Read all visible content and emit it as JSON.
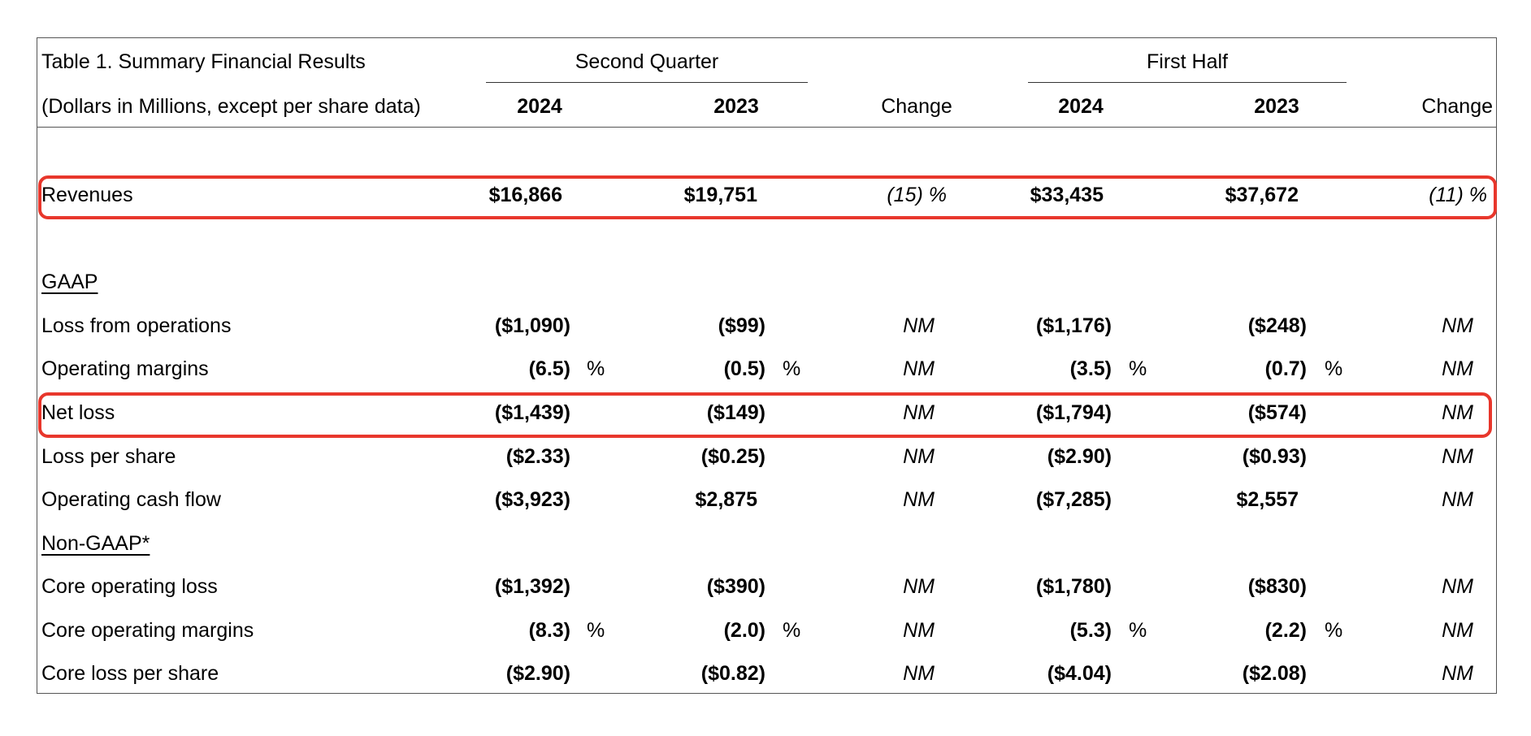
{
  "table": {
    "title": "Table 1. Summary Financial Results",
    "subtitle": "(Dollars in Millions, except per share data)",
    "groups": {
      "q2": "Second Quarter",
      "h1": "First Half"
    },
    "columns": {
      "q2_2024": "2024",
      "q2_2023": "2023",
      "q2_change": "Change",
      "h1_2024": "2024",
      "h1_2023": "2023",
      "h1_change": "Change"
    },
    "percent_sign": "%",
    "rows": [
      {
        "label": "Revenues",
        "q2_2024": "$16,866",
        "q2_2023": "$19,751",
        "q2_change": "(15) %",
        "h1_2024": "$33,435",
        "h1_2023": "$37,672",
        "h1_change": "(11) %",
        "highlighted": true
      },
      {
        "label": "GAAP",
        "section": true
      },
      {
        "label": "Loss from operations",
        "q2_2024": "($1,090)",
        "q2_2023": "($99)",
        "q2_change": "NM",
        "h1_2024": "($1,176)",
        "h1_2023": "($248)",
        "h1_change": "NM"
      },
      {
        "label": "Operating margins",
        "q2_2024": "(6.5)",
        "q2_2023": "(0.5)",
        "q2_change": "NM",
        "h1_2024": "(3.5)",
        "h1_2023": "(0.7)",
        "h1_change": "NM",
        "pct": true
      },
      {
        "label": "Net loss",
        "q2_2024": "($1,439)",
        "q2_2023": "($149)",
        "q2_change": "NM",
        "h1_2024": "($1,794)",
        "h1_2023": "($574)",
        "h1_change": "NM",
        "highlighted": true
      },
      {
        "label": "Loss per share",
        "q2_2024": "($2.33)",
        "q2_2023": "($0.25)",
        "q2_change": "NM",
        "h1_2024": "($2.90)",
        "h1_2023": "($0.93)",
        "h1_change": "NM"
      },
      {
        "label": "Operating cash flow",
        "q2_2024": "($3,923)",
        "q2_2023": "$2,875",
        "q2_change": "NM",
        "h1_2024": "($7,285)",
        "h1_2023": "$2,557",
        "h1_change": "NM"
      },
      {
        "label": "Non-GAAP*",
        "section": true
      },
      {
        "label": "Core operating loss",
        "q2_2024": "($1,392)",
        "q2_2023": "($390)",
        "q2_change": "NM",
        "h1_2024": "($1,780)",
        "h1_2023": "($830)",
        "h1_change": "NM"
      },
      {
        "label": "Core operating margins",
        "q2_2024": "(8.3)",
        "q2_2023": "(2.0)",
        "q2_change": "NM",
        "h1_2024": "(5.3)",
        "h1_2023": "(2.2)",
        "h1_change": "NM",
        "pct": true
      },
      {
        "label": "Core loss per share",
        "q2_2024": "($2.90)",
        "q2_2023": "($0.82)",
        "q2_change": "NM",
        "h1_2024": "($4.04)",
        "h1_2023": "($2.08)",
        "h1_change": "NM"
      }
    ]
  },
  "colors": {
    "highlight": "#e8372c",
    "rule": "#555555"
  }
}
